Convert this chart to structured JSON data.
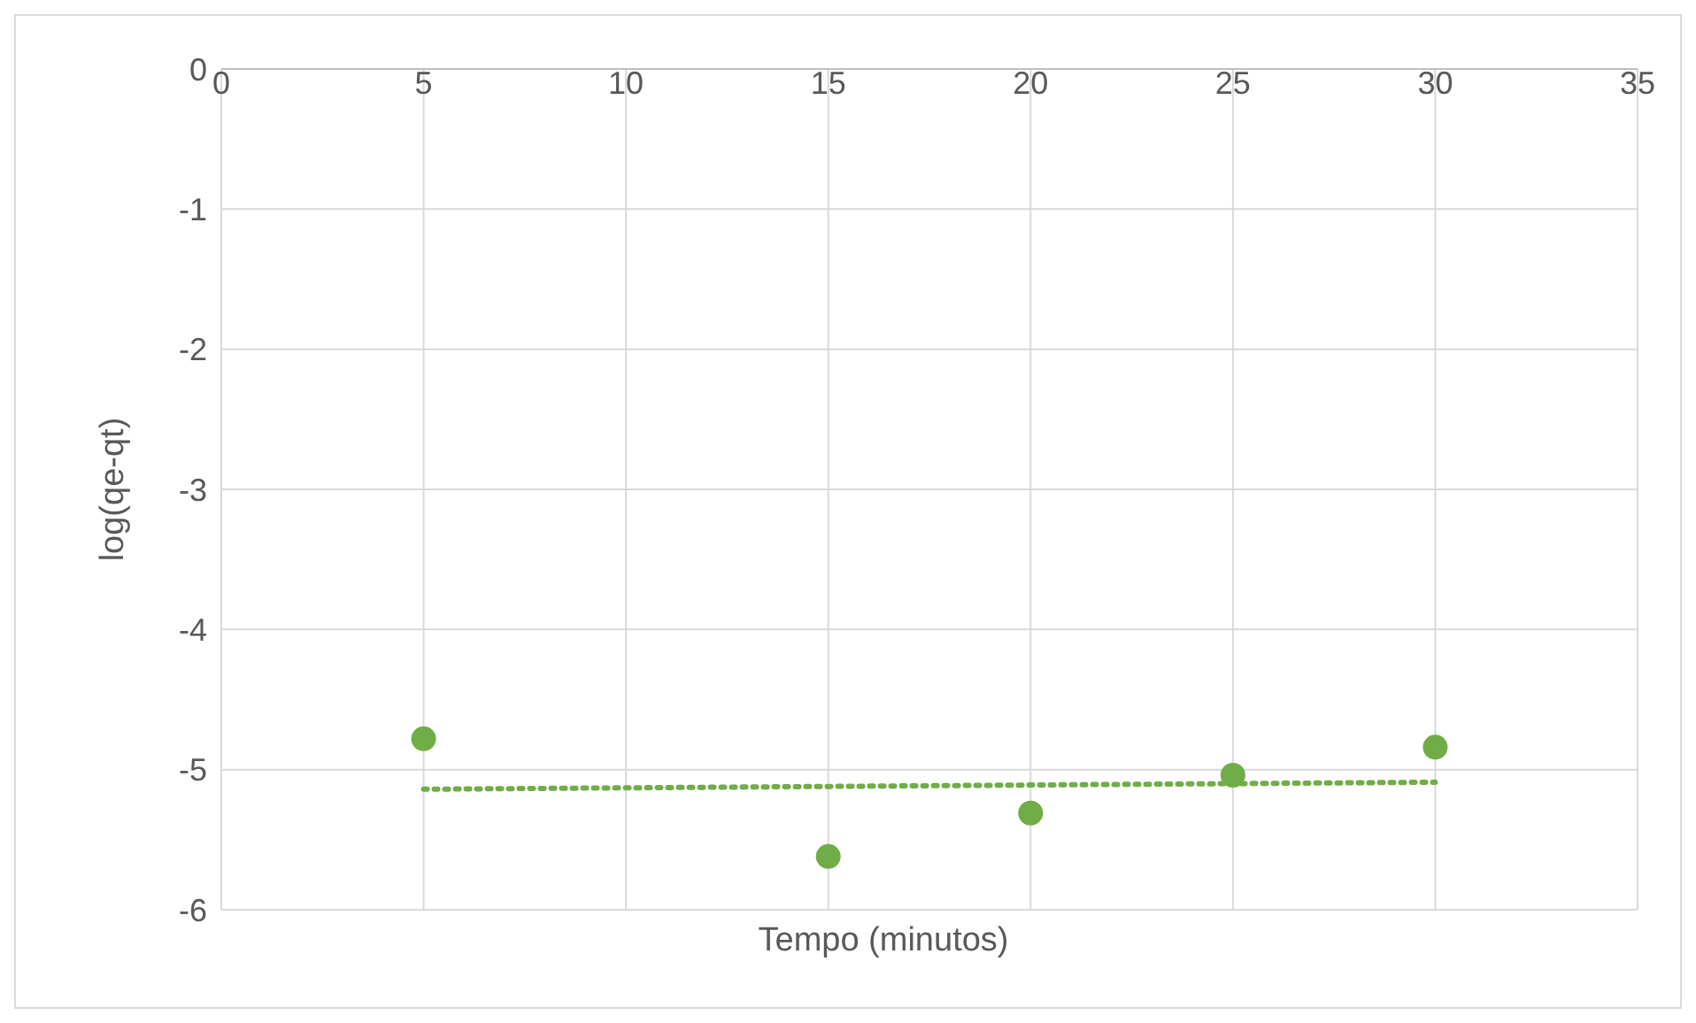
{
  "chart_data": {
    "type": "scatter",
    "xlabel": "Tempo (minutos)",
    "ylabel": "log(qe-qt)",
    "xlim": [
      0,
      35
    ],
    "xticks": [
      0,
      5,
      10,
      15,
      20,
      25,
      30,
      35
    ],
    "ylim": [
      -6,
      0
    ],
    "yticks": [
      -6,
      -5,
      -4,
      -3,
      -2,
      -1,
      0
    ],
    "grid": true,
    "series": [
      {
        "color": "#70ad47",
        "marker": "circle",
        "x": [
          5,
          15,
          20,
          25,
          30
        ],
        "values": [
          -4.78,
          -5.62,
          -5.31,
          -5.04,
          -4.84
        ]
      },
      {
        "type": "line",
        "color": "#70ad47",
        "marker": "none",
        "line_style": "dotted",
        "x": [
          5,
          30
        ],
        "values": [
          -5.14,
          -5.09
        ]
      }
    ]
  }
}
